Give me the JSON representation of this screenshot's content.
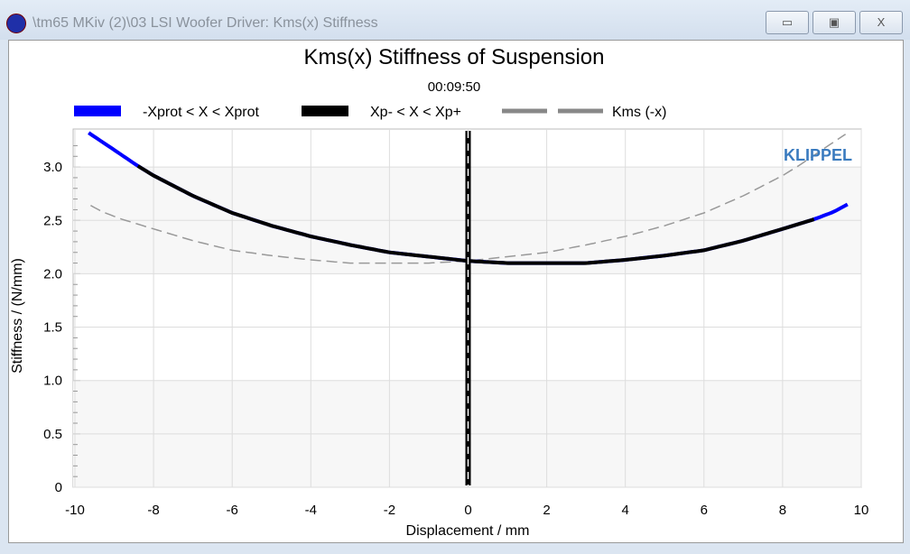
{
  "window": {
    "title": "\\tm65 MKiv (2)\\03 LSI Woofer Driver: Kms(x) Stiffness",
    "minimize": "▭",
    "maximize": "▣",
    "close": "X"
  },
  "logo": "KLIPPEL",
  "chart_data": {
    "type": "line",
    "title": "Kms(x) Stiffness of Suspension",
    "subtitle": "00:09:50",
    "xlabel": "Displacement / mm",
    "ylabel": "Stiffness / (N/mm)",
    "xlim": [
      -10,
      10
    ],
    "ylim": [
      0,
      3.35
    ],
    "xticks": [
      -10,
      -8,
      -6,
      -4,
      -2,
      0,
      2,
      4,
      6,
      8,
      10
    ],
    "yticks": [
      0,
      0.5,
      1.0,
      1.5,
      2.0,
      2.5,
      3.0
    ],
    "ytick_labels": [
      "0",
      "0.5",
      "1.0",
      "1.5",
      "2.0",
      "2.5",
      "3.0"
    ],
    "grid": true,
    "legend": "top",
    "vertical_marker_x": 0,
    "x": [
      -9.65,
      -9,
      -8.4,
      -8,
      -7,
      -6,
      -5,
      -4,
      -3,
      -2,
      -1,
      0,
      0.5,
      1,
      2,
      3,
      4,
      5,
      6,
      7,
      8,
      8.8,
      9.3,
      9.65
    ],
    "series": [
      {
        "name": "-Xprot < X < Xprot",
        "color": "#0000ff",
        "style": "solid",
        "values": [
          3.32,
          3.16,
          3.01,
          2.92,
          2.73,
          2.57,
          2.45,
          2.35,
          2.27,
          2.2,
          2.16,
          2.12,
          2.11,
          2.1,
          2.1,
          2.1,
          2.13,
          2.17,
          2.22,
          2.31,
          2.42,
          2.51,
          2.58,
          2.65
        ]
      },
      {
        "name": "Xp- < X < Xp+",
        "color": "#000000",
        "style": "solid",
        "range": [
          -8.4,
          8.8
        ]
      },
      {
        "name": "Kms (-x)",
        "color": "#999999",
        "style": "dashed",
        "mirror_of": "-Xprot < X < Xprot"
      }
    ]
  }
}
